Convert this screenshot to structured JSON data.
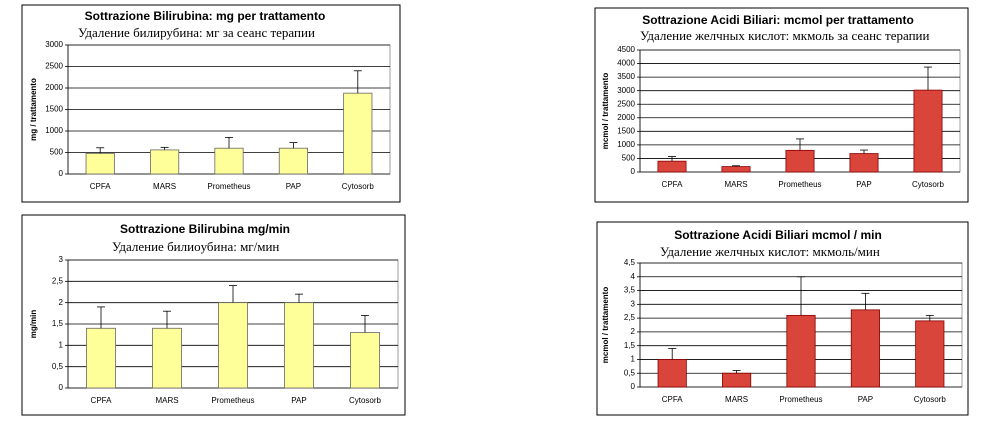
{
  "chart_data": [
    {
      "type": "bar",
      "title": "Sottrazione Bilirubina: mg per trattamento",
      "subtitle": "Удаление билирубина: мг за сеанс терапии",
      "ylabel": "mg / trattamento",
      "categories": [
        "CPFA",
        "MARS",
        "Prometheus",
        "PAP",
        "Cytosorb"
      ],
      "values": [
        480,
        560,
        600,
        600,
        1880
      ],
      "errors": [
        130,
        60,
        250,
        130,
        520
      ],
      "color": "#ffff99",
      "ylim": [
        0,
        3000
      ],
      "yticks": [
        0,
        500,
        1000,
        1500,
        2000,
        2500,
        3000
      ],
      "grid": true
    },
    {
      "type": "bar",
      "title": "Sottrazione Acidi Biliari:  mcmol per trattamento",
      "subtitle": "Удаление желчных кислот: мкмоль за сеанс терапии",
      "ylabel": "mcmol / trattamento",
      "categories": [
        "CPFA",
        "MARS",
        "Prometheus",
        "PAP",
        "Cytosorb"
      ],
      "values": [
        400,
        200,
        800,
        680,
        3020
      ],
      "errors": [
        170,
        30,
        420,
        130,
        850
      ],
      "color": "#d9453a",
      "ylim": [
        0,
        4500
      ],
      "yticks": [
        0,
        500,
        1000,
        1500,
        2000,
        2500,
        3000,
        3500,
        4000,
        4500
      ],
      "grid": true
    },
    {
      "type": "bar",
      "title": "Sottrazione Bilirubina mg/min",
      "subtitle": "Удаление билиoубина: мг/мин",
      "ylabel": "mg/min",
      "categories": [
        "CPFA",
        "MARS",
        "Prometheus",
        "PAP",
        "Cytosorb"
      ],
      "values": [
        1.4,
        1.4,
        2.0,
        2.0,
        1.3
      ],
      "errors": [
        0.5,
        0.4,
        0.4,
        0.2,
        0.4
      ],
      "color": "#ffff99",
      "ylim": [
        0,
        3
      ],
      "yticks": [
        0,
        {
          "value": 0.5,
          "label": "0,5"
        },
        1,
        {
          "value": 1.5,
          "label": "1,5"
        },
        2,
        {
          "value": 2.5,
          "label": "2,5"
        },
        3
      ],
      "grid": true
    },
    {
      "type": "bar",
      "title": "Sottrazione Acidi Biliari mcmol / min",
      "subtitle": "Удаление желчных кислот: мкмоль/мин",
      "ylabel": "mcmol / trattamento",
      "categories": [
        "CPFA",
        "MARS",
        "Prometheus",
        "PAP",
        "Cytosorb"
      ],
      "values": [
        1.0,
        0.5,
        2.6,
        2.8,
        2.4
      ],
      "errors": [
        0.4,
        0.1,
        1.4,
        0.6,
        0.2
      ],
      "color": "#d9453a",
      "ylim": [
        0,
        4.5
      ],
      "yticks": [
        0,
        {
          "value": 0.5,
          "label": "0,5"
        },
        1,
        {
          "value": 1.5,
          "label": "1,5"
        },
        2,
        {
          "value": 2.5,
          "label": "2,5"
        },
        3,
        {
          "value": 3.5,
          "label": "3,5"
        },
        4,
        {
          "value": 4.5,
          "label": "4,5"
        }
      ],
      "grid": true
    }
  ]
}
